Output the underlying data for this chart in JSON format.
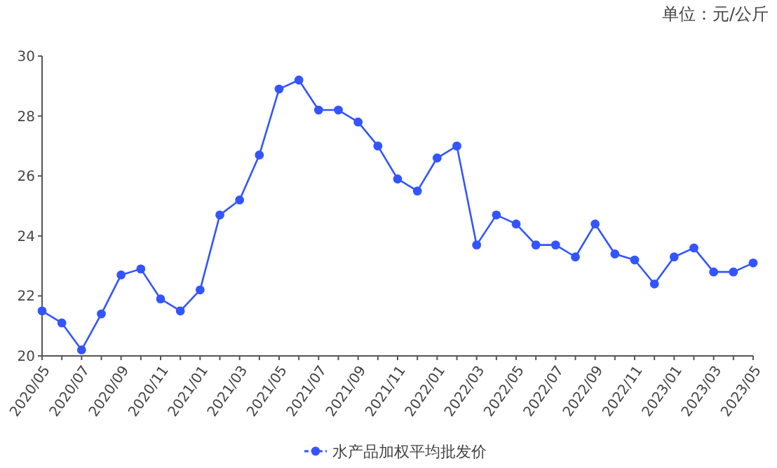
{
  "chart_data": {
    "type": "line",
    "annotations": [
      "单位：元/公斤"
    ],
    "categories": [
      "2020/05",
      null,
      "2020/07",
      null,
      "2020/09",
      null,
      "2020/11",
      null,
      "2021/01",
      null,
      "2021/03",
      null,
      "2021/05",
      null,
      "2021/07",
      null,
      "2021/09",
      null,
      "2021/11",
      null,
      "2022/01",
      null,
      "2022/03",
      null,
      "2022/05",
      null,
      "2022/07",
      null,
      "2022/09",
      null,
      "2022/11",
      null,
      "2023/01",
      null,
      "2023/03",
      null,
      "2023/05"
    ],
    "series": [
      {
        "name": "水产品加权平均批发价",
        "color": "#3355ff",
        "values": [
          21.5,
          21.1,
          20.2,
          21.4,
          22.7,
          22.9,
          21.9,
          21.5,
          22.2,
          24.7,
          25.2,
          26.7,
          28.9,
          29.2,
          28.2,
          28.2,
          27.8,
          27.0,
          25.9,
          25.5,
          26.6,
          27.0,
          23.7,
          24.7,
          24.4,
          23.7,
          23.7,
          23.3,
          24.4,
          23.4,
          23.2,
          22.4,
          23.3,
          23.6,
          22.8,
          22.8,
          23.1
        ]
      }
    ],
    "ylim": [
      20,
      30
    ],
    "yticks": [
      20,
      22,
      24,
      26,
      28,
      30
    ],
    "grid": false,
    "legend": "bottom",
    "marker": "circle",
    "line_style": "solid"
  }
}
